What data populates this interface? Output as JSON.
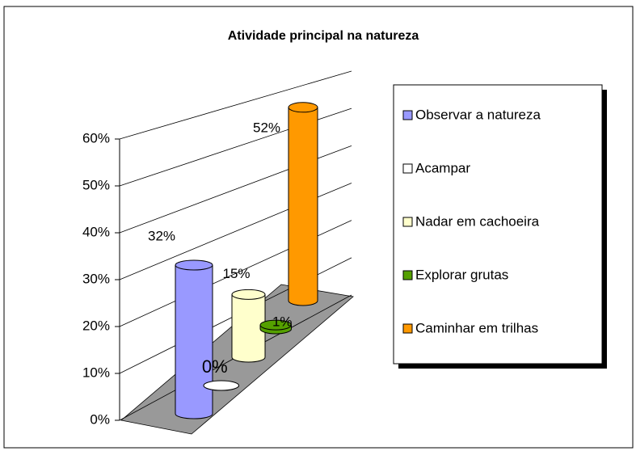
{
  "chart_data": {
    "type": "bar",
    "title": "Atividade principal na natureza",
    "categories": [
      "Observar a natureza",
      "Acampar",
      "Nadar em cachoeira",
      "Explorar grutas",
      "Caminhar em trilhas"
    ],
    "values": [
      32,
      0,
      15,
      1,
      52
    ],
    "value_labels": [
      "32%",
      "0%",
      "15%",
      "1%",
      "52%"
    ],
    "colors": [
      "#9999ff",
      "#ffffff",
      "#ffffcc",
      "#55a000",
      "#ff9900"
    ],
    "ylim": [
      0,
      60
    ],
    "yticks": [
      {
        "value": 0,
        "label": "0%"
      },
      {
        "value": 10,
        "label": "10%"
      },
      {
        "value": 20,
        "label": "20%"
      },
      {
        "value": 30,
        "label": "30%"
      },
      {
        "value": 40,
        "label": "40%"
      },
      {
        "value": 50,
        "label": "50%"
      },
      {
        "value": 60,
        "label": "60%"
      }
    ],
    "grid": true,
    "legend": "right"
  }
}
